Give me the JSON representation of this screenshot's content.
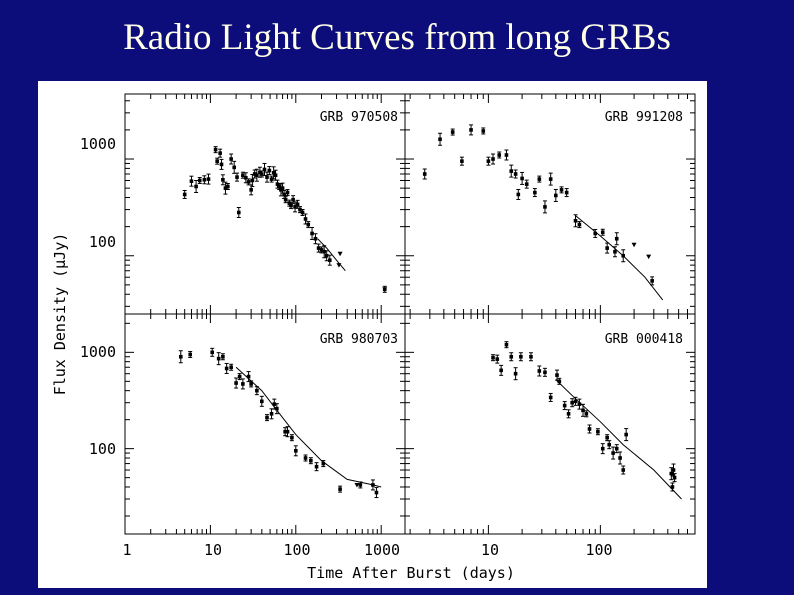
{
  "slide": {
    "title": "Radio Light Curves from long GRBs"
  },
  "figure": {
    "xlabel": "Time After Burst (days)",
    "ylabel": "Flux Density (μJy)",
    "left_x_ticks": [
      "1",
      "10",
      "100",
      "1000"
    ],
    "right_x_ticks": [
      "10",
      "100"
    ],
    "top_y_ticks": [
      "1000",
      "100"
    ],
    "bottom_y_ticks": [
      "1000",
      "100"
    ]
  },
  "chart_data": [
    {
      "type": "scatter",
      "title": "GRB 970508",
      "xscale": "log",
      "yscale": "log",
      "xlim": [
        1,
        1900
      ],
      "ylim": [
        25,
        4700
      ],
      "xlabel": "Time After Burst (days)",
      "ylabel": "Flux Density (μJy)",
      "points": [
        [
          5.0,
          430
        ],
        [
          6.0,
          590
        ],
        [
          6.8,
          520
        ],
        [
          7.5,
          600
        ],
        [
          8.5,
          610
        ],
        [
          9.5,
          620
        ],
        [
          11.5,
          1250
        ],
        [
          12.0,
          950
        ],
        [
          13.0,
          1150
        ],
        [
          13.5,
          880
        ],
        [
          14.0,
          610
        ],
        [
          15.0,
          500
        ],
        [
          16.0,
          520
        ],
        [
          17.5,
          1000
        ],
        [
          19.0,
          820
        ],
        [
          20.5,
          650
        ],
        [
          21.5,
          280
        ],
        [
          24.0,
          680
        ],
        [
          26.0,
          640
        ],
        [
          28.0,
          580
        ],
        [
          30.0,
          480
        ],
        [
          31.0,
          600
        ],
        [
          33.0,
          700
        ],
        [
          35.0,
          680
        ],
        [
          38.0,
          730
        ],
        [
          40.0,
          700
        ],
        [
          43.0,
          780
        ],
        [
          46.0,
          650
        ],
        [
          49.0,
          760
        ],
        [
          52.0,
          620
        ],
        [
          55.0,
          720
        ],
        [
          58.0,
          680
        ],
        [
          61.0,
          550
        ],
        [
          64.0,
          520
        ],
        [
          67.0,
          480
        ],
        [
          70.0,
          500
        ],
        [
          73.0,
          430
        ],
        [
          76.0,
          380
        ],
        [
          80.0,
          450
        ],
        [
          84.0,
          350
        ],
        [
          88.0,
          330
        ],
        [
          93.0,
          380
        ],
        [
          98.0,
          320
        ],
        [
          105.0,
          340
        ],
        [
          112.0,
          300
        ],
        [
          120.0,
          280
        ],
        [
          130.0,
          240
        ],
        [
          140.0,
          210
        ],
        [
          155.0,
          170
        ],
        [
          170.0,
          150
        ],
        [
          185.0,
          120
        ],
        [
          200.0,
          115
        ],
        [
          215.0,
          110
        ],
        [
          230.0,
          100
        ],
        [
          250.0,
          90
        ],
        [
          1100.0,
          45
        ]
      ],
      "model": [
        [
          180,
          150
        ],
        [
          230,
          120
        ],
        [
          300,
          90
        ],
        [
          380,
          70
        ]
      ],
      "upper_limits": [
        [
          320,
          80
        ],
        [
          330,
          105
        ],
        [
          1100,
          45
        ]
      ]
    },
    {
      "type": "scatter",
      "title": "GRB 991208",
      "xscale": "log",
      "yscale": "log",
      "xlim": [
        1.8,
        700
      ],
      "ylim": [
        25,
        4700
      ],
      "xlabel": "Time After Burst (days)",
      "ylabel": "Flux Density (μJy)",
      "points": [
        [
          2.7,
          700
        ],
        [
          3.7,
          1600
        ],
        [
          4.8,
          1900
        ],
        [
          5.8,
          950
        ],
        [
          7.0,
          2000
        ],
        [
          9.0,
          1950
        ],
        [
          10.0,
          950
        ],
        [
          11.0,
          1000
        ],
        [
          12.5,
          1100
        ],
        [
          14.5,
          1100
        ],
        [
          16.0,
          750
        ],
        [
          17.5,
          700
        ],
        [
          18.5,
          430
        ],
        [
          20.0,
          630
        ],
        [
          22.0,
          550
        ],
        [
          26.0,
          450
        ],
        [
          28.5,
          620
        ],
        [
          32.0,
          320
        ],
        [
          36.0,
          620
        ],
        [
          40.0,
          420
        ],
        [
          45.0,
          480
        ],
        [
          50.0,
          450
        ],
        [
          60.0,
          230
        ],
        [
          65.0,
          210
        ],
        [
          90.0,
          170
        ],
        [
          105.0,
          175
        ],
        [
          115.0,
          120
        ],
        [
          135.0,
          110
        ],
        [
          140.0,
          150
        ],
        [
          160.0,
          100
        ],
        [
          290.0,
          55
        ]
      ],
      "model": [
        [
          60,
          260
        ],
        [
          100,
          160
        ],
        [
          160,
          100
        ],
        [
          250,
          60
        ],
        [
          360,
          35
        ]
      ],
      "upper_limits": [
        [
          200,
          130
        ],
        [
          270,
          98
        ]
      ]
    },
    {
      "type": "scatter",
      "title": "GRB 980703",
      "xscale": "log",
      "yscale": "log",
      "xlim": [
        1,
        1900
      ],
      "ylim": [
        13,
        2500
      ],
      "xlabel": "Time After Burst (days)",
      "ylabel": "Flux Density (μJy)",
      "points": [
        [
          4.5,
          900
        ],
        [
          5.8,
          950
        ],
        [
          10.5,
          1000
        ],
        [
          12.5,
          860
        ],
        [
          14.0,
          900
        ],
        [
          15.5,
          680
        ],
        [
          17.5,
          700
        ],
        [
          20.0,
          480
        ],
        [
          22.0,
          560
        ],
        [
          24.0,
          470
        ],
        [
          28.0,
          560
        ],
        [
          30.0,
          470
        ],
        [
          35.0,
          400
        ],
        [
          40.0,
          310
        ],
        [
          46.0,
          210
        ],
        [
          52.0,
          230
        ],
        [
          56.0,
          290
        ],
        [
          60.0,
          260
        ],
        [
          75.0,
          150
        ],
        [
          80.0,
          150
        ],
        [
          90.0,
          130
        ],
        [
          100.0,
          95
        ],
        [
          130.0,
          80
        ],
        [
          150.0,
          75
        ],
        [
          175.0,
          65
        ],
        [
          210.0,
          70
        ],
        [
          330.0,
          38
        ],
        [
          570.0,
          42
        ],
        [
          800.0,
          42
        ],
        [
          880.0,
          35
        ]
      ],
      "model": [
        [
          20,
          700
        ],
        [
          40,
          400
        ],
        [
          60,
          250
        ],
        [
          100,
          140
        ],
        [
          200,
          75
        ],
        [
          400,
          48
        ],
        [
          800,
          42
        ],
        [
          1000,
          40
        ]
      ],
      "upper_limits": [
        [
          520,
          42
        ]
      ]
    },
    {
      "type": "scatter",
      "title": "GRB 000418",
      "xscale": "log",
      "yscale": "log",
      "xlim": [
        1.8,
        700
      ],
      "ylim": [
        13,
        2500
      ],
      "xlabel": "Time After Burst (days)",
      "ylabel": "Flux Density (μJy)",
      "points": [
        [
          11.0,
          880
        ],
        [
          12.0,
          850
        ],
        [
          13.0,
          650
        ],
        [
          14.5,
          1200
        ],
        [
          16.0,
          900
        ],
        [
          17.5,
          600
        ],
        [
          19.5,
          900
        ],
        [
          24.0,
          900
        ],
        [
          28.5,
          640
        ],
        [
          32.0,
          620
        ],
        [
          36.0,
          340
        ],
        [
          41.0,
          580
        ],
        [
          43.0,
          500
        ],
        [
          48.0,
          280
        ],
        [
          52.0,
          230
        ],
        [
          56.0,
          300
        ],
        [
          60.0,
          310
        ],
        [
          65.0,
          290
        ],
        [
          70.0,
          250
        ],
        [
          75.0,
          230
        ],
        [
          80.0,
          160
        ],
        [
          95.0,
          150
        ],
        [
          105.0,
          100
        ],
        [
          115.0,
          130
        ],
        [
          120.0,
          110
        ],
        [
          130.0,
          90
        ],
        [
          140.0,
          100
        ],
        [
          150.0,
          80
        ],
        [
          160.0,
          60
        ],
        [
          170.0,
          140
        ],
        [
          430.0,
          55
        ],
        [
          440.0,
          40
        ],
        [
          450.0,
          60
        ],
        [
          460.0,
          50
        ]
      ],
      "model": [
        [
          40,
          520
        ],
        [
          60,
          330
        ],
        [
          100,
          190
        ],
        [
          160,
          110
        ],
        [
          300,
          60
        ],
        [
          530,
          30
        ]
      ],
      "upper_limits": []
    }
  ]
}
